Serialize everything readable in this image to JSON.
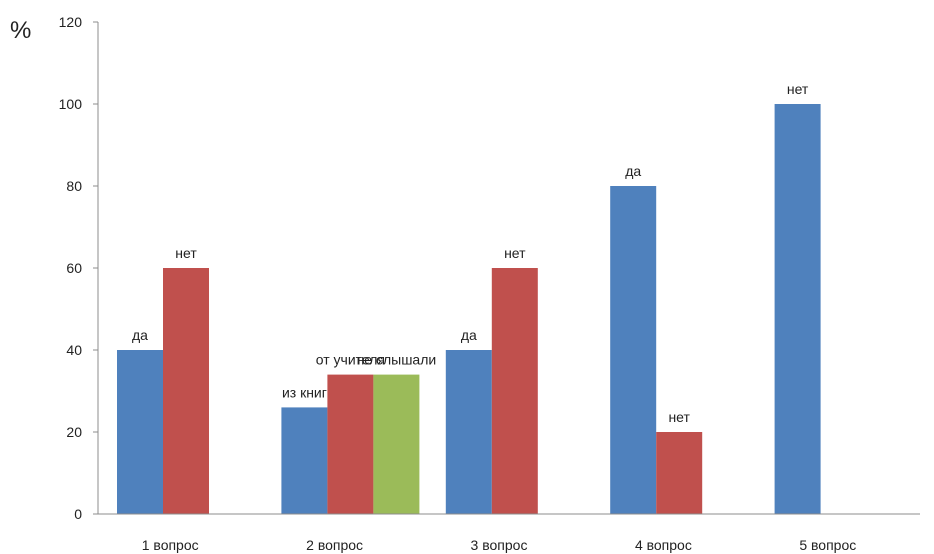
{
  "chart_data": {
    "type": "bar",
    "unit_label": "%",
    "ylim": [
      0,
      120
    ],
    "yticks": [
      "0",
      "20",
      "40",
      "60",
      "80",
      "100",
      "120"
    ],
    "grid": false,
    "legend": "none",
    "categories": [
      "1 вопрос",
      "2 вопрос",
      "3 вопрос",
      "4 вопрос",
      "5 вопрос"
    ],
    "groups": [
      {
        "category": "1 вопрос",
        "bars": [
          {
            "label": "да",
            "value": 40,
            "color": "#4f81bd"
          },
          {
            "label": "нет",
            "value": 60,
            "color": "#c0504d"
          }
        ]
      },
      {
        "category": "2 вопрос",
        "bars": [
          {
            "label": "из книг",
            "value": 26,
            "color": "#4f81bd"
          },
          {
            "label": "от учителя",
            "value": 34,
            "color": "#c0504d"
          },
          {
            "label": "не слышали",
            "value": 34,
            "color": "#9bbb59"
          }
        ]
      },
      {
        "category": "3 вопрос",
        "bars": [
          {
            "label": "да",
            "value": 40,
            "color": "#4f81bd"
          },
          {
            "label": "нет",
            "value": 60,
            "color": "#c0504d"
          }
        ]
      },
      {
        "category": "4 вопрос",
        "bars": [
          {
            "label": "да",
            "value": 80,
            "color": "#4f81bd"
          },
          {
            "label": "нет",
            "value": 20,
            "color": "#c0504d"
          }
        ]
      },
      {
        "category": "5 вопрос",
        "bars": [
          {
            "label": "нет",
            "value": 100,
            "color": "#4f81bd"
          }
        ]
      }
    ]
  }
}
